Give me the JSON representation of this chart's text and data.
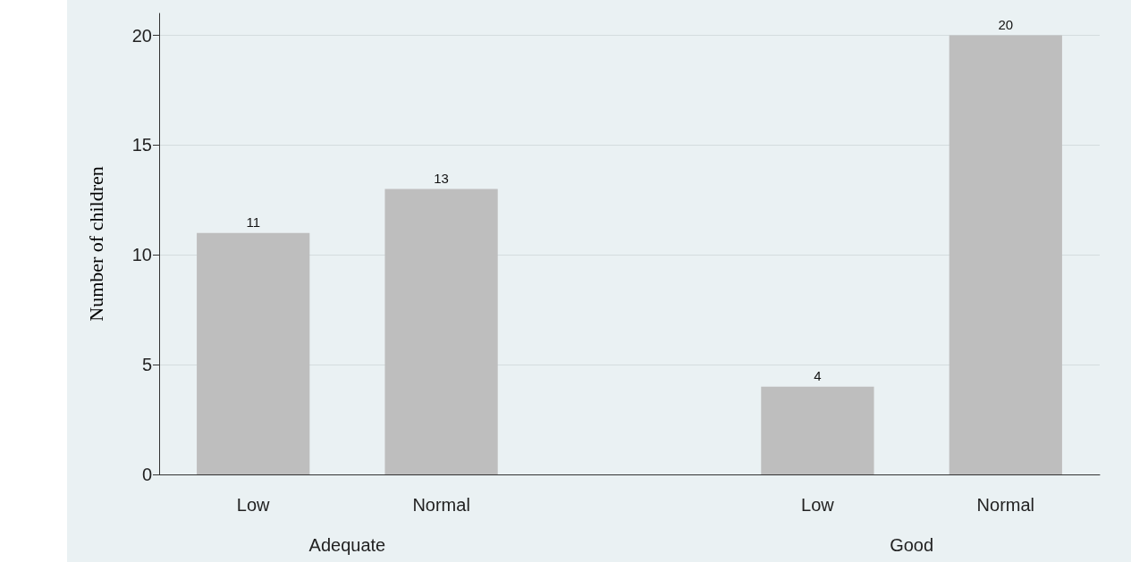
{
  "chart_data": {
    "type": "bar",
    "ylabel": "Number of children",
    "categories": [
      "Low",
      "Normal",
      null,
      "Low",
      "Normal"
    ],
    "values": [
      11,
      13,
      null,
      4,
      20
    ],
    "color": "#bebebe",
    "ylim": [
      0,
      21
    ],
    "yticks": [
      0,
      5,
      10,
      15,
      20
    ],
    "grid": "y",
    "data_labels": true,
    "annotations": [
      "Adequate",
      "Good"
    ]
  }
}
